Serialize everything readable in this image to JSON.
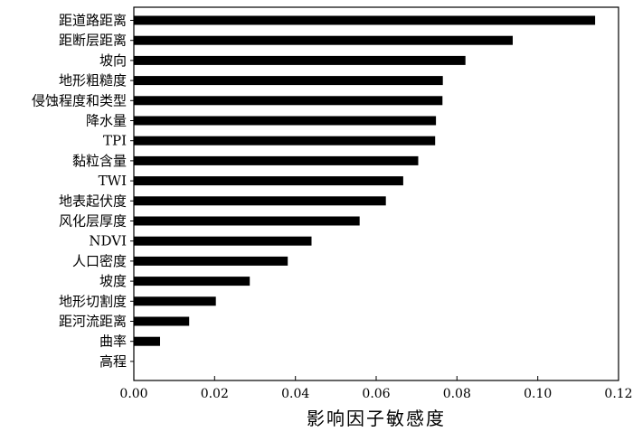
{
  "chart_data": {
    "type": "bar",
    "orientation": "horizontal",
    "title": "",
    "xlabel": "影响因子敏感度",
    "ylabel": "",
    "xlim": [
      0,
      0.12
    ],
    "xticks": [
      "0.00",
      "0.02",
      "0.04",
      "0.06",
      "0.08",
      "0.10",
      "0.12"
    ],
    "categories": [
      "距道路距离",
      "距断层距离",
      "坡向",
      "地形粗糙度",
      "侵蚀程度和类型",
      "降水量",
      "TPI",
      "黏粒含量",
      "TWI",
      "地表起伏度",
      "风化层厚度",
      "NDVI",
      "人口密度",
      "坡度",
      "地形切割度",
      "距河流距离",
      "曲率",
      "高程"
    ],
    "values": [
      0.1142,
      0.0938,
      0.0821,
      0.0765,
      0.0764,
      0.0748,
      0.0746,
      0.0704,
      0.0667,
      0.0624,
      0.0559,
      0.044,
      0.0381,
      0.0287,
      0.0203,
      0.0137,
      0.0065,
      0.0
    ],
    "bar_color": "#000000",
    "grid": false,
    "legend": "none"
  }
}
